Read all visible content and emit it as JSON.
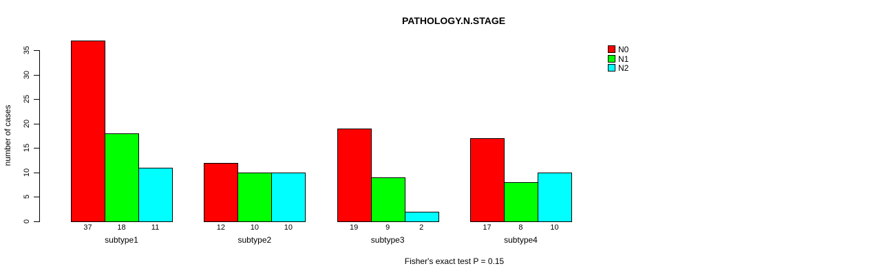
{
  "chart_data": {
    "type": "bar",
    "title": "PATHOLOGY.N.STAGE",
    "ylabel": "number of cases",
    "footer": "Fisher's exact test P = 0.15",
    "categories": [
      "subtype1",
      "subtype2",
      "subtype3",
      "subtype4"
    ],
    "series": [
      {
        "name": "N0",
        "color": "#FF0000",
        "values": [
          37,
          12,
          19,
          17
        ]
      },
      {
        "name": "N1",
        "color": "#00FF00",
        "values": [
          18,
          10,
          9,
          8
        ]
      },
      {
        "name": "N2",
        "color": "#00FFFF",
        "values": [
          11,
          10,
          2,
          10
        ]
      }
    ],
    "y_ticks": [
      0,
      5,
      10,
      15,
      20,
      25,
      30,
      35
    ],
    "ylim": [
      0,
      35
    ],
    "bar_value_labels_shown": true,
    "legend_position": "top-right",
    "grid": false,
    "axis_color": "#000000",
    "background_color": "#FFFFFF"
  }
}
